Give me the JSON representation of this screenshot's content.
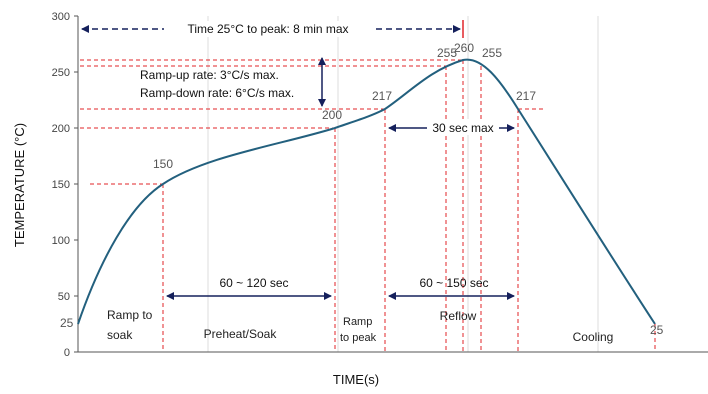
{
  "chart_data": {
    "type": "line",
    "xlabel": "TIME(s)",
    "ylabel": "TEMPERATURE (°C)",
    "ylim": [
      0,
      300
    ],
    "y_ticks": [
      "0",
      "50",
      "100",
      "150",
      "200",
      "250",
      "300"
    ],
    "grid": "vertical gridlines only",
    "profile_points": [
      25,
      150,
      200,
      217,
      255,
      260,
      255,
      217,
      25
    ],
    "value_labels": [
      "25",
      "150",
      "200",
      "217",
      "255",
      "260",
      "255",
      "217",
      "25"
    ],
    "annotations": {
      "time_to_peak": "Time 25°C to peak: 8 min max",
      "ramp_up": "Ramp-up rate: 3°C/s max.",
      "ramp_down": "Ramp-down rate: 6°C/s max.",
      "above_217": "30 sec max",
      "preheat_duration": "60 ~ 120 sec",
      "reflow_duration": "60 ~ 150 sec"
    },
    "phases": {
      "ramp_to_soak": [
        "Ramp to",
        "soak"
      ],
      "preheat": "Preheat/Soak",
      "ramp_to_peak": [
        "Ramp",
        "to peak"
      ],
      "reflow": "Reflow",
      "cooling": "Cooling"
    },
    "colors": {
      "curve": "#23607e",
      "guide": "#e0252a",
      "arrow": "#15205c",
      "axis": "#555555",
      "grid": "#dddddd"
    }
  }
}
